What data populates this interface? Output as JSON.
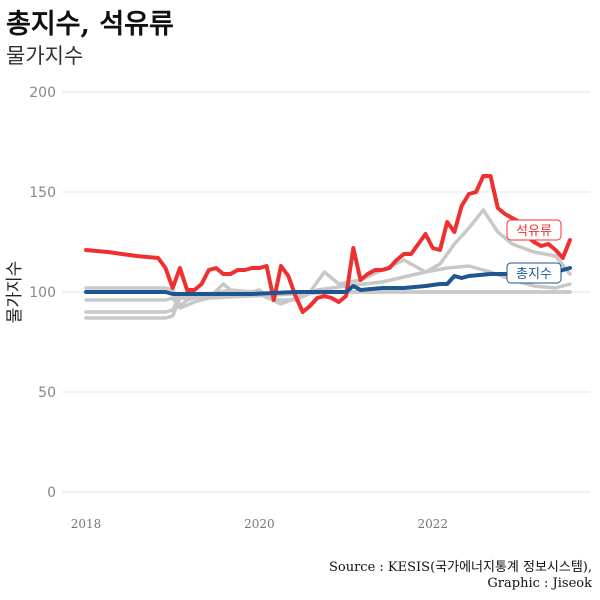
{
  "title": "총지수, 석유류",
  "subtitle": "물가지수",
  "caption_line1": "Source : KESIS(국가에너지통계 정보시스템),",
  "caption_line2": "Graphic : Jiseok",
  "chart_data": {
    "type": "line",
    "title": "총지수, 석유류",
    "subtitle": "물가지수",
    "xlabel": "",
    "ylabel": "물가지수",
    "x_ticks": [
      "2018",
      "2020",
      "2022"
    ],
    "y_ticks": [
      "0",
      "50",
      "100",
      "150",
      "200"
    ],
    "xlim": [
      "2018-01",
      "2023-08"
    ],
    "ylim": [
      0,
      200
    ],
    "grid": true,
    "legend": "direct labels at line ends",
    "series": [
      {
        "name": "",
        "color": "#c8c8c8",
        "points": [
          [
            "2018-01",
            102
          ],
          [
            "2018-06",
            102
          ],
          [
            "2018-12",
            102
          ],
          [
            "2019-01",
            101
          ],
          [
            "2019-02",
            93
          ],
          [
            "2019-03",
            96
          ],
          [
            "2019-06",
            99
          ],
          [
            "2019-09",
            101
          ],
          [
            "2019-12",
            100
          ],
          [
            "2020-01",
            101
          ],
          [
            "2020-03",
            96
          ],
          [
            "2020-06",
            96
          ],
          [
            "2020-09",
            101
          ],
          [
            "2021-01",
            103
          ],
          [
            "2021-06",
            105
          ],
          [
            "2021-12",
            110
          ],
          [
            "2022-03",
            112
          ],
          [
            "2022-06",
            113
          ],
          [
            "2022-09",
            110
          ],
          [
            "2022-12",
            106
          ],
          [
            "2023-03",
            103
          ],
          [
            "2023-06",
            102
          ],
          [
            "2023-08",
            104
          ]
        ]
      },
      {
        "name": "",
        "color": "#c8c8c8",
        "points": [
          [
            "2018-01",
            96
          ],
          [
            "2018-12",
            96
          ],
          [
            "2019-01",
            97
          ],
          [
            "2019-02",
            92
          ],
          [
            "2019-04",
            95
          ],
          [
            "2019-06",
            97
          ],
          [
            "2019-08",
            104
          ],
          [
            "2019-10",
            98
          ],
          [
            "2020-01",
            99
          ],
          [
            "2020-04",
            94
          ],
          [
            "2020-08",
            100
          ],
          [
            "2020-10",
            110
          ],
          [
            "2020-12",
            104
          ],
          [
            "2021-03",
            106
          ],
          [
            "2021-06",
            111
          ],
          [
            "2021-09",
            116
          ],
          [
            "2021-12",
            110
          ],
          [
            "2022-02",
            114
          ],
          [
            "2022-04",
            124
          ],
          [
            "2022-06",
            132
          ],
          [
            "2022-08",
            141
          ],
          [
            "2022-10",
            130
          ],
          [
            "2022-12",
            124
          ],
          [
            "2023-03",
            120
          ],
          [
            "2023-06",
            118
          ],
          [
            "2023-08",
            109
          ]
        ]
      },
      {
        "name": "",
        "color": "#c8c8c8",
        "points": [
          [
            "2018-01",
            90
          ],
          [
            "2018-12",
            90
          ],
          [
            "2019-01",
            91
          ],
          [
            "2019-02",
            98
          ],
          [
            "2019-06",
            98
          ],
          [
            "2019-12",
            99
          ],
          [
            "2020-06",
            100
          ],
          [
            "2020-12",
            100
          ],
          [
            "2021-06",
            100
          ],
          [
            "2021-12",
            100
          ],
          [
            "2022-06",
            100
          ],
          [
            "2022-12",
            100
          ],
          [
            "2023-08",
            100
          ]
        ]
      },
      {
        "name": "",
        "color": "#c8c8c8",
        "points": [
          [
            "2018-01",
            87
          ],
          [
            "2018-12",
            87
          ],
          [
            "2019-01",
            88
          ],
          [
            "2019-02",
            97
          ],
          [
            "2019-06",
            97
          ],
          [
            "2019-12",
            98
          ],
          [
            "2020-06",
            99
          ],
          [
            "2020-12",
            100
          ],
          [
            "2021-06",
            100
          ],
          [
            "2021-12",
            100
          ],
          [
            "2022-06",
            100
          ],
          [
            "2022-12",
            100
          ],
          [
            "2023-08",
            100
          ]
        ]
      },
      {
        "name": "석유류",
        "color": "#f03030",
        "width": 4,
        "label": "석유류",
        "points": [
          [
            "2018-01",
            121
          ],
          [
            "2018-04",
            120
          ],
          [
            "2018-08",
            118
          ],
          [
            "2018-11",
            117
          ],
          [
            "2018-12",
            112
          ],
          [
            "2019-01",
            102
          ],
          [
            "2019-02",
            112
          ],
          [
            "2019-03",
            101
          ],
          [
            "2019-04",
            101
          ],
          [
            "2019-05",
            104
          ],
          [
            "2019-06",
            111
          ],
          [
            "2019-07",
            112
          ],
          [
            "2019-08",
            109
          ],
          [
            "2019-09",
            109
          ],
          [
            "2019-10",
            111
          ],
          [
            "2019-11",
            111
          ],
          [
            "2019-12",
            112
          ],
          [
            "2020-01",
            112
          ],
          [
            "2020-02",
            113
          ],
          [
            "2020-03",
            96
          ],
          [
            "2020-04",
            113
          ],
          [
            "2020-05",
            108
          ],
          [
            "2020-06",
            98
          ],
          [
            "2020-07",
            90
          ],
          [
            "2020-08",
            93
          ],
          [
            "2020-09",
            97
          ],
          [
            "2020-10",
            98
          ],
          [
            "2020-11",
            97
          ],
          [
            "2020-12",
            95
          ],
          [
            "2021-01",
            98
          ],
          [
            "2021-02",
            122
          ],
          [
            "2021-03",
            106
          ],
          [
            "2021-04",
            109
          ],
          [
            "2021-05",
            111
          ],
          [
            "2021-06",
            111
          ],
          [
            "2021-07",
            112
          ],
          [
            "2021-08",
            116
          ],
          [
            "2021-09",
            119
          ],
          [
            "2021-10",
            119
          ],
          [
            "2021-11",
            124
          ],
          [
            "2021-12",
            129
          ],
          [
            "2022-01",
            122
          ],
          [
            "2022-02",
            121
          ],
          [
            "2022-03",
            135
          ],
          [
            "2022-04",
            130
          ],
          [
            "2022-05",
            143
          ],
          [
            "2022-06",
            149
          ],
          [
            "2022-07",
            150
          ],
          [
            "2022-08",
            158
          ],
          [
            "2022-09",
            158
          ],
          [
            "2022-10",
            142
          ],
          [
            "2022-11",
            139
          ],
          [
            "2022-12",
            137
          ],
          [
            "2023-01",
            135
          ],
          [
            "2023-02",
            128
          ],
          [
            "2023-03",
            125
          ],
          [
            "2023-04",
            123
          ],
          [
            "2023-05",
            124
          ],
          [
            "2023-06",
            121
          ],
          [
            "2023-07",
            117
          ],
          [
            "2023-08",
            126
          ]
        ]
      },
      {
        "name": "총지수",
        "color": "#1f5590",
        "width": 4,
        "label": "총지수",
        "points": [
          [
            "2018-01",
            100
          ],
          [
            "2018-06",
            100
          ],
          [
            "2018-11",
            100
          ],
          [
            "2018-12",
            100
          ],
          [
            "2019-01",
            99
          ],
          [
            "2019-06",
            99
          ],
          [
            "2019-12",
            99
          ],
          [
            "2020-06",
            100
          ],
          [
            "2020-12",
            100
          ],
          [
            "2021-01",
            100
          ],
          [
            "2021-02",
            103
          ],
          [
            "2021-03",
            101
          ],
          [
            "2021-06",
            102
          ],
          [
            "2021-09",
            102
          ],
          [
            "2021-12",
            103
          ],
          [
            "2022-02",
            104
          ],
          [
            "2022-03",
            104
          ],
          [
            "2022-04",
            108
          ],
          [
            "2022-05",
            107
          ],
          [
            "2022-06",
            108
          ],
          [
            "2022-09",
            109
          ],
          [
            "2022-12",
            109
          ],
          [
            "2023-03",
            110
          ],
          [
            "2023-06",
            110
          ],
          [
            "2023-07",
            111
          ],
          [
            "2023-08",
            112
          ]
        ]
      }
    ]
  }
}
